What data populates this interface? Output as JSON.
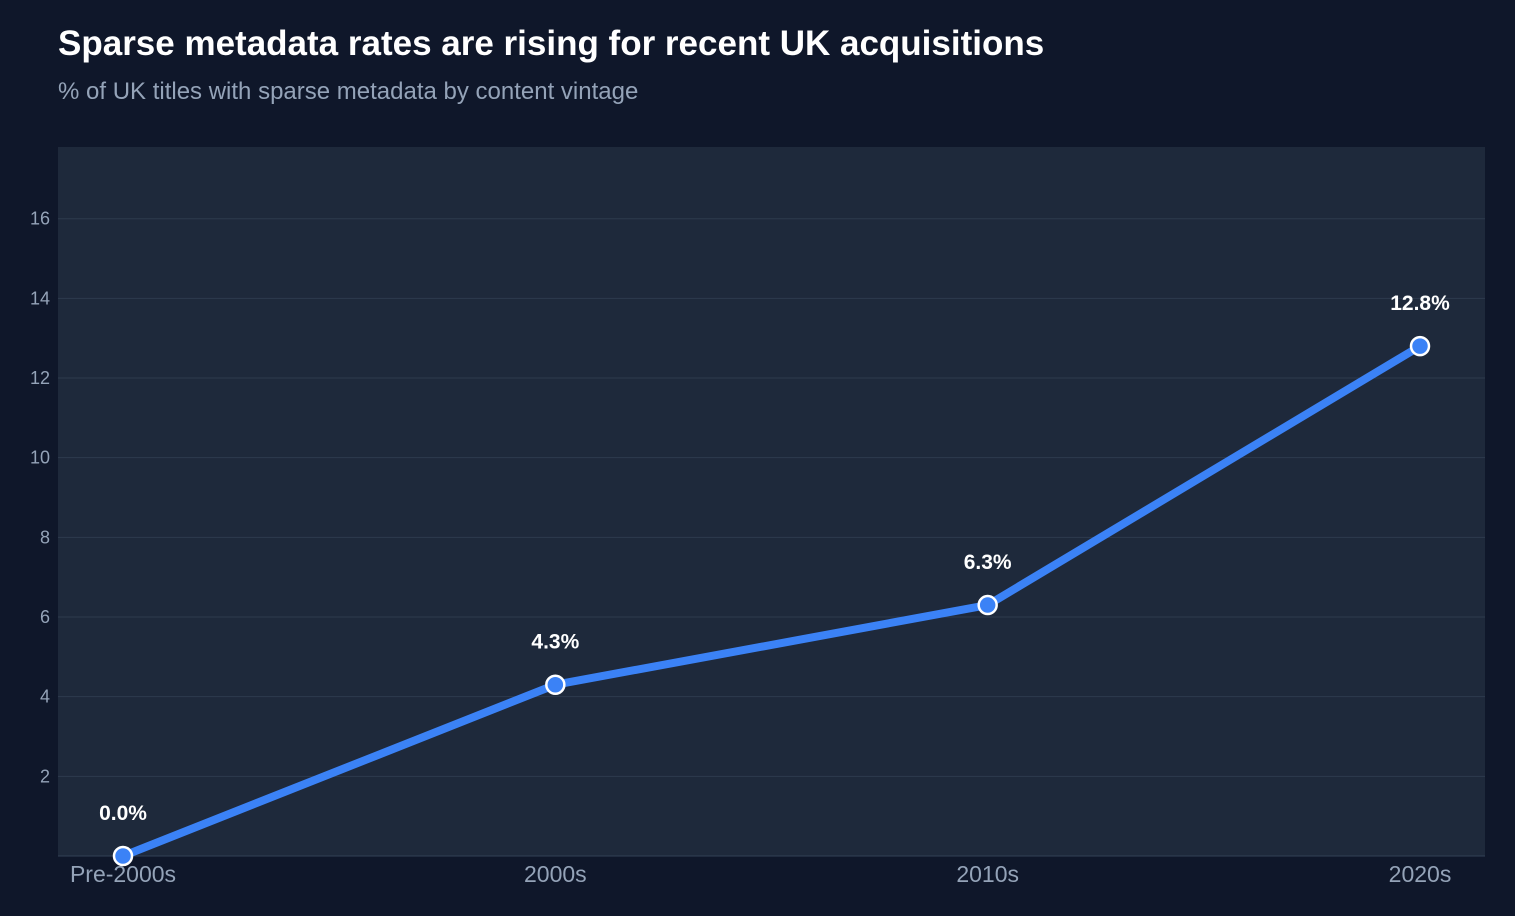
{
  "title": "Sparse metadata rates are rising for recent UK acquisitions",
  "subtitle": "% of UK titles with sparse metadata by content vintage",
  "colors": {
    "background": "#0f172a",
    "plot_background": "#1e293b",
    "grid": "#334155",
    "line": "#3b82f6",
    "text": "#ffffff",
    "muted_text": "#94a3b8"
  },
  "chart_data": {
    "type": "line",
    "title": "Sparse metadata rates are rising for recent UK acquisitions",
    "subtitle": "% of UK titles with sparse metadata by content vintage",
    "xlabel": "",
    "ylabel": "",
    "categories": [
      "Pre-2000s",
      "2000s",
      "2010s",
      "2020s"
    ],
    "values": [
      0.0,
      4.3,
      6.3,
      12.8
    ],
    "data_labels": [
      "0.0%",
      "4.3%",
      "6.3%",
      "12.8%"
    ],
    "ylim": [
      0,
      17.8
    ],
    "yticks": [
      2,
      4,
      6,
      8,
      10,
      12,
      14,
      16
    ],
    "grid": true,
    "legend": "none"
  }
}
